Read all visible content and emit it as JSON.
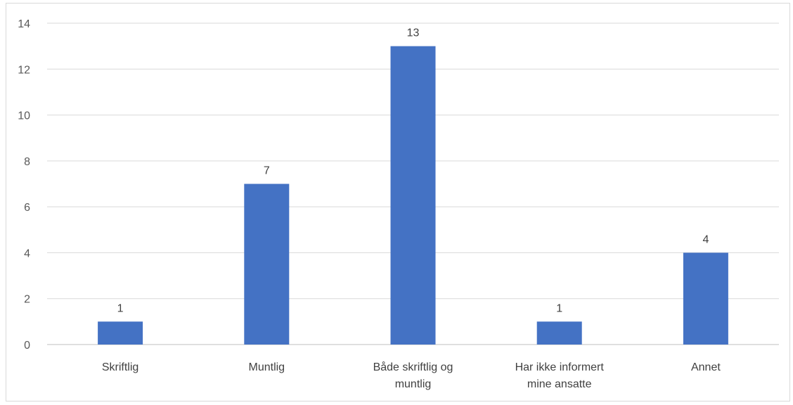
{
  "chart_data": {
    "type": "bar",
    "categories": [
      [
        "Skriftlig"
      ],
      [
        "Muntlig"
      ],
      [
        "Både skriftlig og",
        "muntlig"
      ],
      [
        "Har ikke informert",
        "mine ansatte"
      ],
      [
        "Annet"
      ]
    ],
    "values": [
      1,
      7,
      13,
      1,
      4
    ],
    "data_labels": [
      "1",
      "7",
      "13",
      "1",
      "4"
    ],
    "y_ticks": [
      "0",
      "2",
      "4",
      "6",
      "8",
      "10",
      "12",
      "14"
    ],
    "ylim": [
      0,
      14
    ],
    "grid": true,
    "legend": "none",
    "colors": {
      "bar": "#4472C4",
      "grid": "#d9d9d9",
      "axis": "#bfbfbf"
    }
  }
}
